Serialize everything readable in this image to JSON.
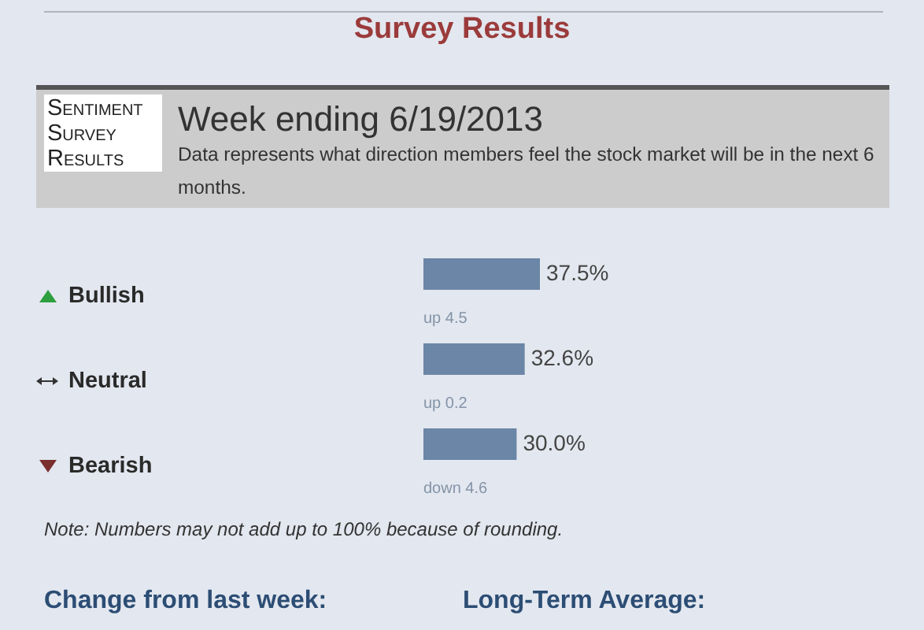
{
  "chart_data": {
    "type": "bar",
    "orientation": "horizontal",
    "title": "Survey Results",
    "subtitle": "Week ending 6/19/2013",
    "categories": [
      "Bullish",
      "Neutral",
      "Bearish"
    ],
    "values": [
      37.5,
      32.6,
      30.0
    ],
    "value_labels": [
      "37.5%",
      "32.6%",
      "30.0%"
    ],
    "color": "#6b86a6",
    "tick_labels": "y",
    "annotations": [
      "Sentiment Survey Results",
      "Data represents what direction members feel the stock market will be in the next 6 months.",
      {
        "text": "up 4.5",
        "y": "Bullish"
      },
      {
        "text": "up 0.2",
        "y": "Neutral"
      },
      {
        "text": "down 4.6",
        "y": "Bearish"
      },
      "Note: Numbers may not add up to 100% because of rounding.",
      "Change from last week:",
      "Long-Term Average:"
    ]
  }
}
